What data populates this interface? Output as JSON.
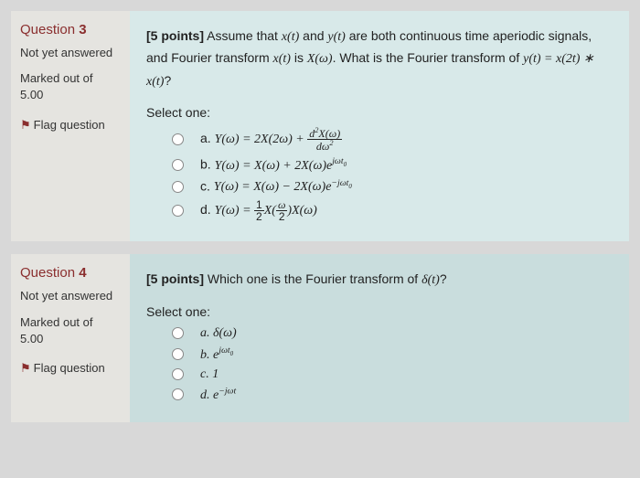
{
  "q3": {
    "title_prefix": "Question ",
    "number": "3",
    "status": "Not yet answered",
    "marks_label": "Marked out of",
    "marks_value": "5.00",
    "flag_text": "Flag question",
    "points_label": "[5 points]",
    "prompt_1": " Assume that ",
    "prompt_2": " and ",
    "prompt_3": " are both continuous time aperiodic signals, and Fourier transform ",
    "prompt_4": " is ",
    "prompt_5": ". What is the Fourier transform of ",
    "prompt_6": "?",
    "xt": "x(t)",
    "yt": "y(t)",
    "Xw": "X(ω)",
    "yeq": "y(t) = x(2t) ∗ x(t)",
    "select": "Select one:",
    "opt_a_prefix": "a. ",
    "opt_b_prefix": "b. ",
    "opt_c_prefix": "c. ",
    "opt_d_prefix": "d. "
  },
  "q4": {
    "title_prefix": "Question ",
    "number": "4",
    "status": "Not yet answered",
    "marks_label": "Marked out of",
    "marks_value": "5.00",
    "flag_text": "Flag question",
    "points_label": "[5 points]",
    "prompt": " Which one is the Fourier transform of ",
    "delta": "δ(t)",
    "qmark": "?",
    "select": "Select one:",
    "opt_a": "a. δ(ω)",
    "opt_c": "c. 1"
  },
  "colors": {
    "page_bg": "#d8d8d8",
    "sidebar_bg": "#e5e4e0",
    "content_bg": "#d8e9e9",
    "content_bg_alt": "#c9dddd",
    "title_color": "#8a2e2e"
  }
}
